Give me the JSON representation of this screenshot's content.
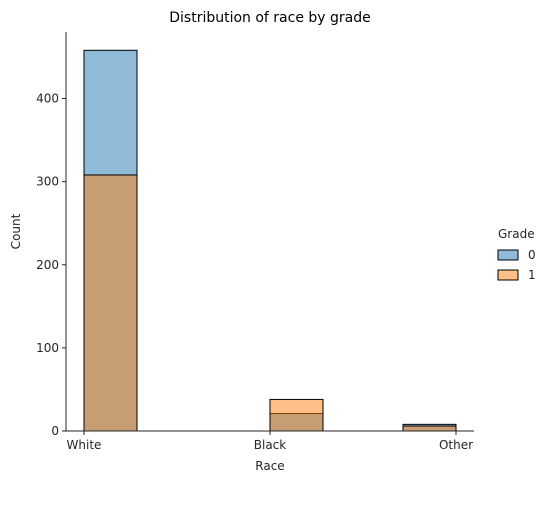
{
  "chart_data": {
    "type": "bar",
    "title": "Distribution of race by grade",
    "xlabel": "Race",
    "ylabel": "Count",
    "categories": [
      "White",
      "Black",
      "Other"
    ],
    "ylim": [
      0,
      480
    ],
    "yticks": [
      0,
      100,
      200,
      300,
      400
    ],
    "legend": {
      "title": "Grade",
      "placement": "right"
    },
    "series": [
      {
        "name": "0",
        "values": [
          458,
          21,
          8
        ],
        "color": "#1f77b4"
      },
      {
        "name": "1",
        "values": [
          308,
          38,
          6
        ],
        "color": "#ff7f0e"
      }
    ],
    "bar_opacity": 0.5,
    "grid": false
  }
}
